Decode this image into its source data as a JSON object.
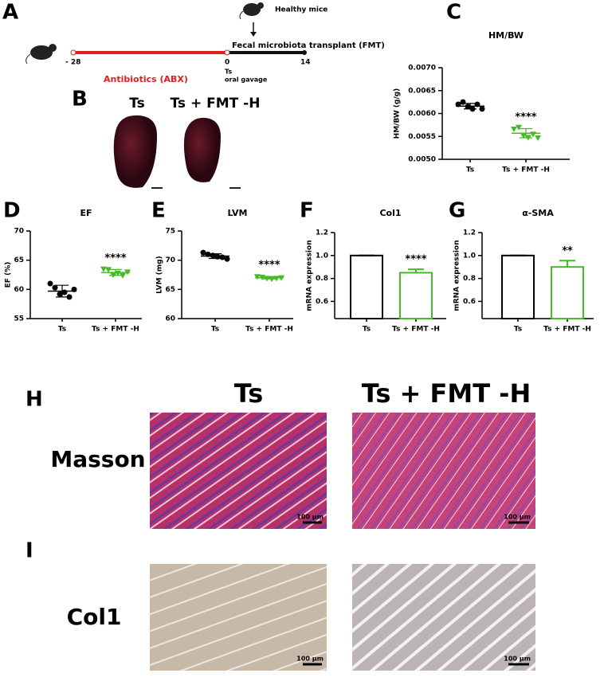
{
  "figure": {
    "panel_labels": [
      "A",
      "B",
      "C",
      "D",
      "E",
      "F",
      "G",
      "H",
      "I"
    ],
    "timeline": {
      "start": "- 28",
      "zero": "0",
      "end": "14",
      "abx": "Antibiotics (ABX)",
      "fmt": "Fecal microbiota transplant (FMT)",
      "donor": "Healthy mice",
      "route": [
        "Ts",
        "oral gavage"
      ]
    },
    "hearts": [
      "Ts",
      "Ts + FMT -H"
    ],
    "histology": {
      "columns": [
        "Ts",
        "Ts + FMT -H"
      ],
      "rows": [
        "Masson",
        "Col1"
      ],
      "scale_bar": "100 μm"
    }
  },
  "chart_data": [
    {
      "type": "dot",
      "title": "HM/BW",
      "y_label": "HM/BW (g/g)",
      "categories": [
        "Ts",
        "Ts + FMT -H"
      ],
      "groups": [
        {
          "color": "#000000",
          "marker": "circle",
          "values": [
            0.0062,
            0.00625,
            0.00615,
            0.0061,
            0.0062,
            0.0061
          ],
          "mean": 0.00616,
          "sd": 6e-05
        },
        {
          "color": "#44bb22",
          "marker": "triangle",
          "values": [
            0.00566,
            0.0057,
            0.00552,
            0.00548,
            0.00555,
            0.00547
          ],
          "mean": 0.00557,
          "sd": 0.0001
        }
      ],
      "annotation": "****",
      "ylim": [
        0.005,
        0.007
      ],
      "yticks": [
        {
          "value": 0.005,
          "label": "0.0050"
        },
        {
          "value": 0.0055,
          "label": "0.0055"
        },
        {
          "value": 0.006,
          "label": "0.0060"
        },
        {
          "value": 0.0065,
          "label": "0.0065"
        },
        {
          "value": 0.007,
          "label": "0.0070"
        }
      ]
    },
    {
      "type": "dot",
      "title": "EF",
      "y_label": "EF (%)",
      "categories": [
        "Ts",
        "Ts + FMT -H"
      ],
      "groups": [
        {
          "color": "#000000",
          "marker": "circle",
          "values": [
            61,
            60.3,
            59.2,
            59.5,
            58.7,
            60
          ],
          "mean": 59.7,
          "sd": 1.0
        },
        {
          "color": "#44bb22",
          "marker": "triangle",
          "values": [
            63.5,
            63.4,
            62.5,
            62.8,
            62.4,
            63
          ],
          "mean": 62.9,
          "sd": 0.5
        }
      ],
      "annotation": "****",
      "ylim": [
        55,
        70
      ],
      "yticks": [
        55,
        60,
        65,
        70
      ]
    },
    {
      "type": "dot",
      "title": "LVM",
      "y_label": "LVM (mg)",
      "categories": [
        "Ts",
        "Ts + FMT -H"
      ],
      "groups": [
        {
          "color": "#000000",
          "marker": "circle",
          "values": [
            71.3,
            71,
            70.8,
            70.6,
            70.5,
            70.2
          ],
          "mean": 70.7,
          "sd": 0.4
        },
        {
          "color": "#44bb22",
          "marker": "triangle",
          "values": [
            67.2,
            67.1,
            66.9,
            66.8,
            66.9,
            67
          ],
          "mean": 67,
          "sd": 0.2
        }
      ],
      "annotation": "****",
      "ylim": [
        60,
        75
      ],
      "yticks": [
        60,
        65,
        70,
        75
      ]
    },
    {
      "type": "bar",
      "title": "Col1",
      "y_label": "mRNA expression",
      "categories": [
        "Ts",
        "Ts + FMT -H"
      ],
      "values": [
        1.0,
        0.85
      ],
      "errors": [
        0,
        0.03
      ],
      "colors": [
        "#000000",
        "#44bb22"
      ],
      "annotation": "****",
      "ylim": [
        0.45,
        1.2
      ],
      "yticks": [
        0.6,
        0.8,
        {
          "value": 1.0,
          "label": "1.0"
        },
        1.2
      ]
    },
    {
      "type": "bar",
      "title": "α-SMA",
      "y_label": "mRNA expression",
      "categories": [
        "Ts",
        "Ts + FMT -H"
      ],
      "values": [
        1.0,
        0.9
      ],
      "errors": [
        0,
        0.055
      ],
      "colors": [
        "#000000",
        "#44bb22"
      ],
      "annotation": "**",
      "ylim": [
        0.45,
        1.2
      ],
      "yticks": [
        0.6,
        0.8,
        {
          "value": 1.0,
          "label": "1.0"
        },
        1.2
      ]
    }
  ]
}
